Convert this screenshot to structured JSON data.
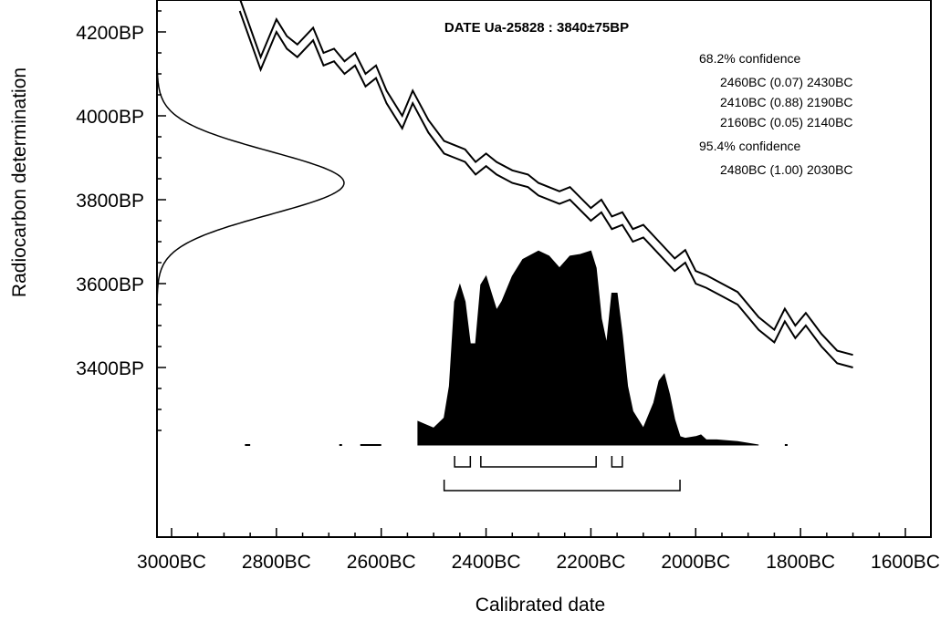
{
  "chart_data": {
    "type": "area",
    "title": "DATE Ua-25828 : 3840±75BP",
    "xlabel": "Calibrated date",
    "ylabel": "Radiocarbon determination",
    "x_axis": {
      "direction": "reversed",
      "range_bc": [
        3000,
        1600
      ],
      "tick_labels": [
        "3000BC",
        "2800BC",
        "2600BC",
        "2400BC",
        "2200BC",
        "2000BC",
        "1800BC",
        "1600BC"
      ],
      "tick_values_bc": [
        3000,
        2800,
        2600,
        2400,
        2200,
        2000,
        1800,
        1600
      ]
    },
    "y_axis": {
      "range_bp": [
        3190,
        4260
      ],
      "tick_labels": [
        "3400BP",
        "3600BP",
        "3800BP",
        "4000BP",
        "4200BP"
      ],
      "tick_values_bp": [
        3400,
        3600,
        3800,
        4000,
        4200
      ]
    },
    "radiocarbon_measurement": {
      "mean_bp": 3840,
      "sigma_bp": 75
    },
    "calibration_curve": {
      "x_bc": [
        2870,
        2830,
        2800,
        2780,
        2760,
        2730,
        2710,
        2690,
        2670,
        2650,
        2630,
        2610,
        2590,
        2560,
        2540,
        2510,
        2480,
        2460,
        2440,
        2420,
        2400,
        2380,
        2350,
        2320,
        2300,
        2260,
        2240,
        2200,
        2180,
        2160,
        2140,
        2120,
        2100,
        2070,
        2040,
        2020,
        2000,
        1980,
        1950,
        1920,
        1880,
        1850,
        1830,
        1810,
        1790,
        1760,
        1730,
        1700
      ],
      "upper_bp": [
        4280,
        4140,
        4230,
        4190,
        4170,
        4210,
        4150,
        4160,
        4130,
        4150,
        4100,
        4120,
        4060,
        4000,
        4060,
        3990,
        3940,
        3930,
        3920,
        3890,
        3910,
        3890,
        3870,
        3860,
        3840,
        3820,
        3830,
        3780,
        3800,
        3760,
        3770,
        3730,
        3740,
        3700,
        3660,
        3680,
        3630,
        3620,
        3600,
        3580,
        3520,
        3490,
        3540,
        3500,
        3530,
        3480,
        3440,
        3430
      ],
      "lower_bp": [
        4250,
        4110,
        4200,
        4160,
        4140,
        4180,
        4120,
        4130,
        4100,
        4120,
        4070,
        4090,
        4030,
        3970,
        4030,
        3960,
        3910,
        3900,
        3890,
        3860,
        3880,
        3860,
        3840,
        3830,
        3810,
        3790,
        3800,
        3750,
        3770,
        3730,
        3740,
        3700,
        3710,
        3670,
        3630,
        3650,
        3600,
        3590,
        3570,
        3550,
        3490,
        3460,
        3510,
        3470,
        3500,
        3450,
        3410,
        3400
      ]
    },
    "probability_distribution": {
      "x_bc": [
        2530,
        2500,
        2480,
        2470,
        2460,
        2450,
        2440,
        2430,
        2420,
        2410,
        2400,
        2390,
        2380,
        2370,
        2350,
        2330,
        2300,
        2280,
        2260,
        2240,
        2220,
        2200,
        2190,
        2180,
        2170,
        2160,
        2150,
        2140,
        2130,
        2120,
        2100,
        2080,
        2070,
        2060,
        2050,
        2040,
        2030,
        2020,
        2000,
        1990,
        1980,
        1960,
        1920,
        1880
      ],
      "relative_height": [
        0.14,
        0.1,
        0.16,
        0.35,
        0.85,
        0.95,
        0.85,
        0.6,
        0.6,
        0.95,
        1.0,
        0.9,
        0.8,
        0.85,
        1.0,
        1.1,
        1.15,
        1.12,
        1.05,
        1.12,
        1.13,
        1.15,
        1.05,
        0.75,
        0.6,
        0.9,
        0.9,
        0.65,
        0.35,
        0.2,
        0.1,
        0.25,
        0.38,
        0.42,
        0.3,
        0.15,
        0.05,
        0.04,
        0.05,
        0.06,
        0.03,
        0.03,
        0.02,
        0.0
      ]
    },
    "tail_marks_bc": [
      [
        2860,
        2850
      ],
      [
        2680,
        2680
      ],
      [
        2640,
        2600
      ],
      [
        1830,
        1830
      ]
    ],
    "confidence_labels": [
      "68.2% confidence",
      "2460BC (0.07) 2430BC",
      "2410BC (0.88) 2190BC",
      "2160BC (0.05) 2140BC",
      "95.4% confidence",
      "2480BC (1.00) 2030BC"
    ],
    "ranges_68": [
      [
        2460,
        2430
      ],
      [
        2410,
        2190
      ],
      [
        2160,
        2140
      ]
    ],
    "ranges_95": [
      [
        2480,
        2030
      ]
    ]
  }
}
